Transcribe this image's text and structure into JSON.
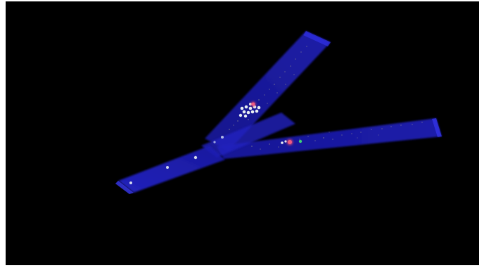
{
  "scene": {
    "description_visible_text": "",
    "colors": {
      "background": "#000000",
      "frame": "#ffffff",
      "branch_fill": "#1f1fb8",
      "branch_edge": "#2b2be0",
      "particle_white": "#e8eef2",
      "particle_pink": "#e0486e",
      "particle_green": "#3ad07a",
      "dust": "#d9d28a"
    }
  }
}
